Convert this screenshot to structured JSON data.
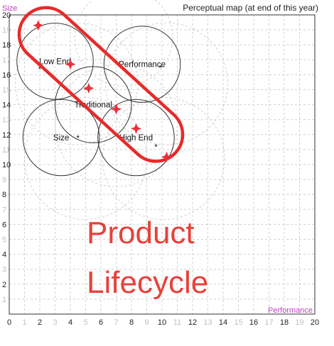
{
  "chart_data": {
    "type": "scatter",
    "title": "Perceptual map (at end of this year)",
    "xlabel": "Performance",
    "ylabel": "Size",
    "xlim": [
      0,
      20
    ],
    "ylim": [
      0,
      20
    ],
    "x_ticks": [
      {
        "v": 0,
        "label": "0",
        "dark": true
      },
      {
        "v": 1,
        "label": "1",
        "dark": false
      },
      {
        "v": 2,
        "label": "2",
        "dark": true
      },
      {
        "v": 3,
        "label": "3",
        "dark": false
      },
      {
        "v": 4,
        "label": "4",
        "dark": true
      },
      {
        "v": 5,
        "label": "5",
        "dark": false
      },
      {
        "v": 6,
        "label": "6",
        "dark": true
      },
      {
        "v": 7,
        "label": "7",
        "dark": false
      },
      {
        "v": 8,
        "label": "8",
        "dark": true
      },
      {
        "v": 9,
        "label": "9",
        "dark": false
      },
      {
        "v": 10,
        "label": "10",
        "dark": true
      },
      {
        "v": 11,
        "label": "11",
        "dark": false
      },
      {
        "v": 12,
        "label": "12",
        "dark": true
      },
      {
        "v": 13,
        "label": "13",
        "dark": false
      },
      {
        "v": 14,
        "label": "14",
        "dark": true
      },
      {
        "v": 15,
        "label": "15",
        "dark": false
      },
      {
        "v": 16,
        "label": "16",
        "dark": true
      },
      {
        "v": 17,
        "label": "17",
        "dark": false
      },
      {
        "v": 18,
        "label": "18",
        "dark": true
      },
      {
        "v": 19,
        "label": "19",
        "dark": false
      },
      {
        "v": 20,
        "label": "20",
        "dark": true
      }
    ],
    "y_ticks": [
      {
        "v": 1,
        "label": "1",
        "dark": false
      },
      {
        "v": 2,
        "label": "2",
        "dark": true
      },
      {
        "v": 3,
        "label": "3",
        "dark": false
      },
      {
        "v": 4,
        "label": "4",
        "dark": true
      },
      {
        "v": 5,
        "label": "5",
        "dark": false
      },
      {
        "v": 6,
        "label": "6",
        "dark": true
      },
      {
        "v": 7,
        "label": "7",
        "dark": false
      },
      {
        "v": 8,
        "label": "8",
        "dark": true
      },
      {
        "v": 9,
        "label": "9",
        "dark": false
      },
      {
        "v": 10,
        "label": "10",
        "dark": true
      },
      {
        "v": 11,
        "label": "11",
        "dark": false
      },
      {
        "v": 12,
        "label": "12",
        "dark": true
      },
      {
        "v": 13,
        "label": "13",
        "dark": false
      },
      {
        "v": 14,
        "label": "14",
        "dark": true
      },
      {
        "v": 15,
        "label": "15",
        "dark": false
      },
      {
        "v": 16,
        "label": "16",
        "dark": true
      },
      {
        "v": 17,
        "label": "17",
        "dark": false
      },
      {
        "v": 18,
        "label": "18",
        "dark": true
      },
      {
        "v": 19,
        "label": "19",
        "dark": false
      },
      {
        "v": 20,
        "label": "20",
        "dark": true
      }
    ],
    "segments": [
      {
        "name": "Low End",
        "center": [
          3.0,
          16.9
        ],
        "radius": 2.5,
        "ideal": [
          2.0,
          16.4
        ]
      },
      {
        "name": "Performance",
        "center": [
          8.7,
          16.7
        ],
        "radius": 2.5,
        "ideal": [
          9.9,
          16.5
        ]
      },
      {
        "name": "Traditional",
        "center": [
          5.5,
          14.0
        ],
        "radius": 2.5,
        "ideal": [
          5.0,
          15.0
        ]
      },
      {
        "name": "Size",
        "center": [
          3.4,
          11.8
        ],
        "radius": 2.5,
        "ideal": [
          4.5,
          11.8
        ]
      },
      {
        "name": "High End",
        "center": [
          8.3,
          11.8
        ],
        "radius": 2.5,
        "ideal": [
          9.6,
          11.2
        ]
      }
    ],
    "faint_circles": [
      {
        "center": [
          4.4,
          15.4
        ],
        "radius": 4.0
      },
      {
        "center": [
          10.3,
          15.4
        ],
        "radius": 4.0
      },
      {
        "center": [
          7.0,
          12.6
        ],
        "radius": 4.0
      },
      {
        "center": [
          5.0,
          10.4
        ],
        "radius": 4.0
      },
      {
        "center": [
          10.1,
          10.4
        ],
        "radius": 4.0
      },
      {
        "center": [
          7.5,
          18.5
        ],
        "radius": 3.2
      }
    ],
    "products": [
      {
        "x": 1.9,
        "y": 19.3
      },
      {
        "x": 4.0,
        "y": 16.7
      },
      {
        "x": 5.2,
        "y": 15.1
      },
      {
        "x": 7.0,
        "y": 13.7
      },
      {
        "x": 8.3,
        "y": 12.4
      },
      {
        "x": 10.3,
        "y": 10.5
      }
    ],
    "lifecycle_band": {
      "from": [
        2.4,
        18.7
      ],
      "to": [
        9.6,
        12.0
      ],
      "half_width": 1.75
    },
    "grid": true,
    "colors": {
      "product_marker": "#e8303a",
      "band": "#e82a2a",
      "circle": "#333333",
      "faint": "#cfcfcf"
    }
  },
  "overlay": {
    "line1": "Product",
    "line2": "Lifecycle"
  }
}
